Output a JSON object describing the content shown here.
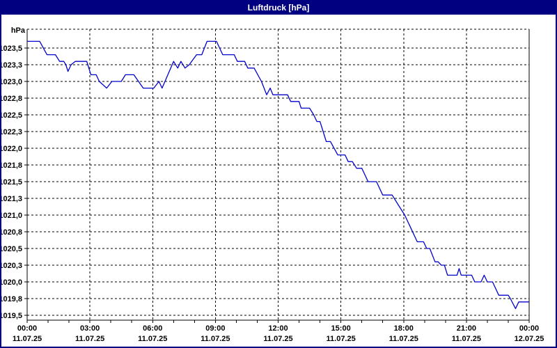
{
  "window": {
    "title": "Luftdruck [hPa]"
  },
  "colors": {
    "frame": "#000080",
    "titlebar_bg": "#000080",
    "titlebar_text": "#ffffff",
    "background": "#ffffff",
    "grid": "#000000",
    "axis": "#000000",
    "tick_label": "#000000",
    "line": "#0000cc"
  },
  "chart_data": {
    "type": "line",
    "title": "Luftdruck [hPa]",
    "ylabel": "hPa",
    "xlabel": "",
    "unit_label": "hPa",
    "grid": "dashed",
    "legend": "none",
    "ylim": [
      1019.4,
      1023.78
    ],
    "xlim_hours": [
      0,
      24
    ],
    "x_start": "11.07.25 00:00",
    "x_end": "12.07.25 00:00",
    "y_ticks": [
      {
        "label": "1023,5",
        "value": 1023.5
      },
      {
        "label": "1023,3",
        "value": 1023.25
      },
      {
        "label": "1023,0",
        "value": 1023.0
      },
      {
        "label": "1022,8",
        "value": 1022.75
      },
      {
        "label": "1022,5",
        "value": 1022.5
      },
      {
        "label": "1022,3",
        "value": 1022.25
      },
      {
        "label": "1022,0",
        "value": 1022.0
      },
      {
        "label": "1021,8",
        "value": 1021.75
      },
      {
        "label": "1021,5",
        "value": 1021.5
      },
      {
        "label": "1021,3",
        "value": 1021.25
      },
      {
        "label": "1021,0",
        "value": 1021.0
      },
      {
        "label": "1020,8",
        "value": 1020.75
      },
      {
        "label": "1020,5",
        "value": 1020.5
      },
      {
        "label": "1020,3",
        "value": 1020.25
      },
      {
        "label": "1020,0",
        "value": 1020.0
      },
      {
        "label": "1019,8",
        "value": 1019.75
      },
      {
        "label": "1019,5",
        "value": 1019.5
      }
    ],
    "x_ticks": [
      {
        "time": "00:00",
        "date": "11.07.25",
        "hour": 0
      },
      {
        "time": "03:00",
        "date": "11.07.25",
        "hour": 3
      },
      {
        "time": "06:00",
        "date": "11.07.25",
        "hour": 6
      },
      {
        "time": "09:00",
        "date": "11.07.25",
        "hour": 9
      },
      {
        "time": "12:00",
        "date": "11.07.25",
        "hour": 12
      },
      {
        "time": "15:00",
        "date": "11.07.25",
        "hour": 15
      },
      {
        "time": "18:00",
        "date": "11.07.25",
        "hour": 18
      },
      {
        "time": "21:00",
        "date": "11.07.25",
        "hour": 21
      },
      {
        "time": "00:00",
        "date": "12.07.25",
        "hour": 24
      }
    ],
    "minor_x_tick_every_hours": 1,
    "series": [
      {
        "name": "Luftdruck",
        "unit": "hPa",
        "color": "#0000cc",
        "points": [
          [
            0,
            1023.6
          ],
          [
            0.6,
            1023.6
          ],
          [
            0.95,
            1023.4
          ],
          [
            1.35,
            1023.4
          ],
          [
            1.55,
            1023.3
          ],
          [
            1.75,
            1023.3
          ],
          [
            1.85,
            1023.25
          ],
          [
            1.95,
            1023.15
          ],
          [
            2.1,
            1023.25
          ],
          [
            2.3,
            1023.3
          ],
          [
            2.85,
            1023.3
          ],
          [
            3.05,
            1023.1
          ],
          [
            3.3,
            1023.1
          ],
          [
            3.45,
            1023.0
          ],
          [
            3.8,
            1022.9
          ],
          [
            4.05,
            1023.0
          ],
          [
            4.5,
            1023.0
          ],
          [
            4.7,
            1023.1
          ],
          [
            5.1,
            1023.1
          ],
          [
            5.55,
            1022.9
          ],
          [
            6.05,
            1022.9
          ],
          [
            6.3,
            1023.0
          ],
          [
            6.45,
            1022.9
          ],
          [
            7.0,
            1023.3
          ],
          [
            7.2,
            1023.2
          ],
          [
            7.35,
            1023.3
          ],
          [
            7.55,
            1023.2
          ],
          [
            7.75,
            1023.25
          ],
          [
            8.1,
            1023.4
          ],
          [
            8.35,
            1023.4
          ],
          [
            8.6,
            1023.6
          ],
          [
            9.05,
            1023.6
          ],
          [
            9.35,
            1023.4
          ],
          [
            9.9,
            1023.4
          ],
          [
            10.05,
            1023.3
          ],
          [
            10.4,
            1023.3
          ],
          [
            10.55,
            1023.2
          ],
          [
            10.85,
            1023.2
          ],
          [
            11.2,
            1023.0
          ],
          [
            11.45,
            1022.8
          ],
          [
            11.62,
            1022.9
          ],
          [
            11.75,
            1022.8
          ],
          [
            12.45,
            1022.8
          ],
          [
            12.6,
            1022.7
          ],
          [
            13.0,
            1022.7
          ],
          [
            13.1,
            1022.6
          ],
          [
            13.5,
            1022.6
          ],
          [
            13.7,
            1022.5
          ],
          [
            13.85,
            1022.4
          ],
          [
            14.0,
            1022.4
          ],
          [
            14.15,
            1022.25
          ],
          [
            14.3,
            1022.1
          ],
          [
            14.5,
            1022.1
          ],
          [
            14.85,
            1021.9
          ],
          [
            15.2,
            1021.9
          ],
          [
            15.35,
            1021.8
          ],
          [
            15.55,
            1021.8
          ],
          [
            15.75,
            1021.7
          ],
          [
            16.0,
            1021.7
          ],
          [
            16.15,
            1021.6
          ],
          [
            16.3,
            1021.5
          ],
          [
            16.7,
            1021.5
          ],
          [
            16.85,
            1021.4
          ],
          [
            17.0,
            1021.3
          ],
          [
            17.45,
            1021.3
          ],
          [
            17.75,
            1021.15
          ],
          [
            18.05,
            1021.0
          ],
          [
            18.35,
            1020.8
          ],
          [
            18.65,
            1020.6
          ],
          [
            18.95,
            1020.6
          ],
          [
            19.1,
            1020.5
          ],
          [
            19.25,
            1020.5
          ],
          [
            19.5,
            1020.3
          ],
          [
            19.65,
            1020.3
          ],
          [
            19.8,
            1020.25
          ],
          [
            19.95,
            1020.25
          ],
          [
            20.1,
            1020.1
          ],
          [
            20.55,
            1020.1
          ],
          [
            20.65,
            1020.2
          ],
          [
            20.75,
            1020.1
          ],
          [
            21.25,
            1020.1
          ],
          [
            21.4,
            1020.0
          ],
          [
            21.7,
            1020.0
          ],
          [
            21.85,
            1020.1
          ],
          [
            22.0,
            1020.0
          ],
          [
            22.25,
            1020.0
          ],
          [
            22.55,
            1019.8
          ],
          [
            23.0,
            1019.8
          ],
          [
            23.1,
            1019.75
          ],
          [
            23.35,
            1019.6
          ],
          [
            23.5,
            1019.7
          ],
          [
            24,
            1019.7
          ]
        ]
      }
    ]
  }
}
